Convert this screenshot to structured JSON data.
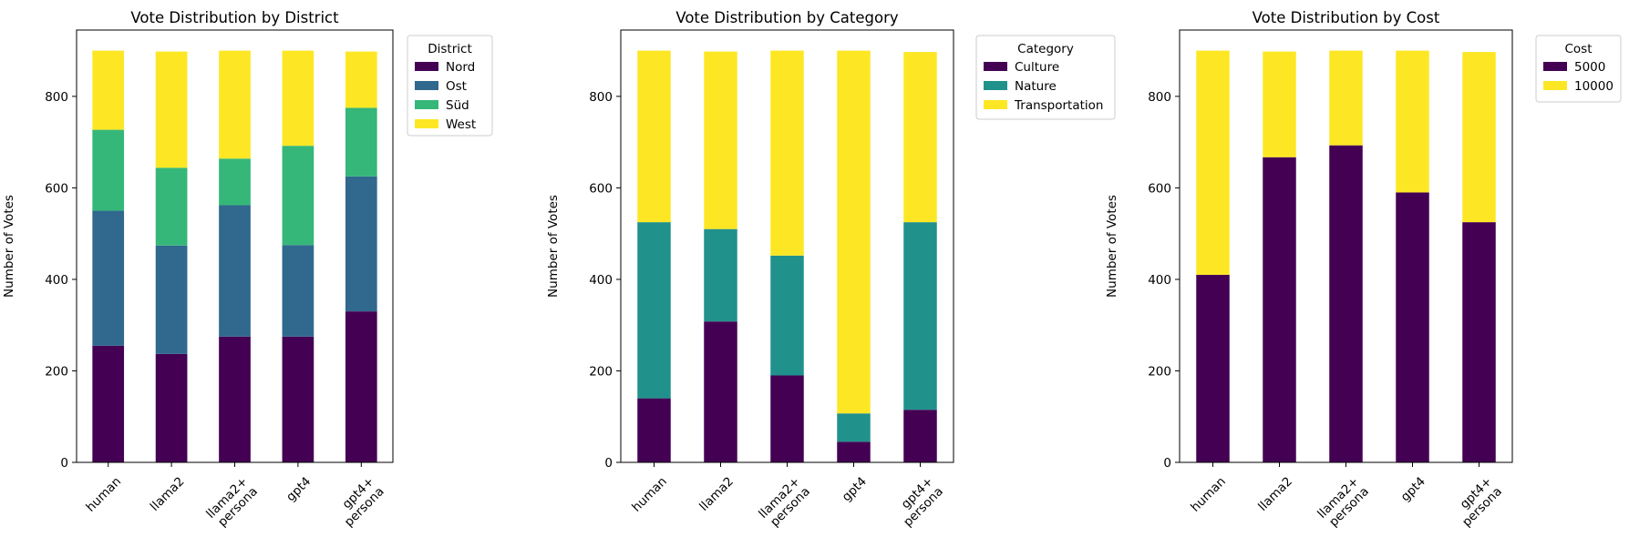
{
  "chart_data": [
    {
      "type": "stacked-bar",
      "title": "Vote Distribution by District",
      "xlabel": "",
      "ylabel": "Number of Votes",
      "ylim": [
        0,
        945
      ],
      "yticks": [
        0,
        200,
        400,
        600,
        800
      ],
      "categories": [
        [
          "human"
        ],
        [
          "llama2"
        ],
        [
          "llama2+",
          "persona"
        ],
        [
          "gpt4"
        ],
        [
          "gpt4+",
          "persona"
        ]
      ],
      "legend": {
        "title": "District",
        "placement": "outside-top-right"
      },
      "series": [
        {
          "name": "Nord",
          "color": "#440154",
          "values": [
            255,
            237,
            275,
            275,
            330
          ]
        },
        {
          "name": "Ost",
          "color": "#31688e",
          "values": [
            295,
            237,
            287,
            200,
            295
          ]
        },
        {
          "name": "Süd",
          "color": "#35b779",
          "values": [
            177,
            170,
            102,
            217,
            150
          ]
        },
        {
          "name": "West",
          "color": "#fde725",
          "values": [
            173,
            254,
            236,
            208,
            123
          ]
        }
      ]
    },
    {
      "type": "stacked-bar",
      "title": "Vote Distribution by Category",
      "xlabel": "",
      "ylabel": "Number of Votes",
      "ylim": [
        0,
        945
      ],
      "yticks": [
        0,
        200,
        400,
        600,
        800
      ],
      "categories": [
        [
          "human"
        ],
        [
          "llama2"
        ],
        [
          "llama2+",
          "persona"
        ],
        [
          "gpt4"
        ],
        [
          "gpt4+",
          "persona"
        ]
      ],
      "legend": {
        "title": "Category",
        "placement": "outside-top-right"
      },
      "series": [
        {
          "name": "Culture",
          "color": "#440154",
          "values": [
            140,
            308,
            190,
            45,
            115
          ]
        },
        {
          "name": "Nature",
          "color": "#21918c",
          "values": [
            385,
            202,
            262,
            62,
            410
          ]
        },
        {
          "name": "Transportation",
          "color": "#fde725",
          "values": [
            375,
            388,
            448,
            793,
            372
          ]
        }
      ]
    },
    {
      "type": "stacked-bar",
      "title": "Vote Distribution by Cost",
      "xlabel": "",
      "ylabel": "Number of Votes",
      "ylim": [
        0,
        945
      ],
      "yticks": [
        0,
        200,
        400,
        600,
        800
      ],
      "categories": [
        [
          "human"
        ],
        [
          "llama2"
        ],
        [
          "llama2+",
          "persona"
        ],
        [
          "gpt4"
        ],
        [
          "gpt4+",
          "persona"
        ]
      ],
      "legend": {
        "title": "Cost",
        "placement": "outside-top-right"
      },
      "series": [
        {
          "name": "5000",
          "color": "#440154",
          "values": [
            410,
            667,
            693,
            590,
            525
          ]
        },
        {
          "name": "10000",
          "color": "#fde725",
          "values": [
            490,
            231,
            207,
            310,
            372
          ]
        }
      ]
    }
  ]
}
